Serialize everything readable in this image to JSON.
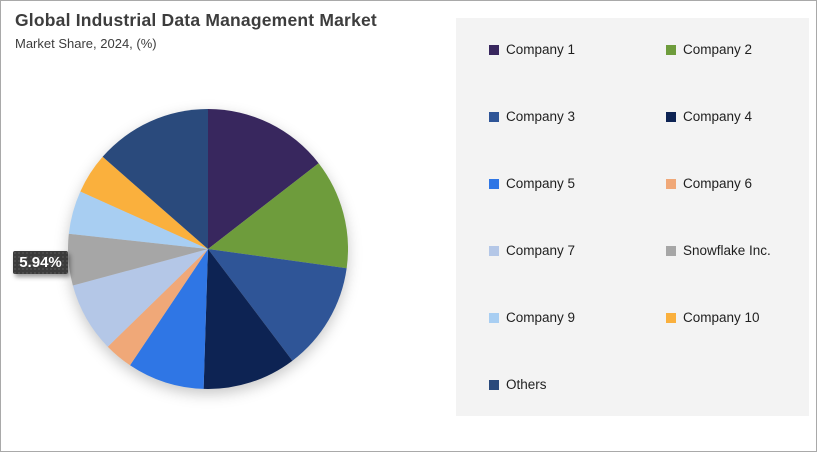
{
  "window": {
    "border_color": "#a9a9a9",
    "background": "#ffffff"
  },
  "header": {
    "title": "Global Industrial Data Management Market",
    "subtitle": "Market Share, 2024, (%)"
  },
  "chart_data": {
    "type": "pie",
    "title": "Global Industrial Data Management Market",
    "subtitle": "Market Share, 2024, (%)",
    "unit": "%",
    "start_angle_deg": 0,
    "clockwise": true,
    "legend_position": "right",
    "legend_background": "#f3f3f3",
    "slices": [
      {
        "label": "Company 1",
        "value": 14.5,
        "color": "#38275e"
      },
      {
        "label": "Company 2",
        "value": 12.7,
        "color": "#6e9c3c"
      },
      {
        "label": "Company 3",
        "value": 12.5,
        "color": "#2f5597"
      },
      {
        "label": "Company 4",
        "value": 10.8,
        "color": "#0d2353"
      },
      {
        "label": "Company 5",
        "value": 8.9,
        "color": "#2f76e5"
      },
      {
        "label": "Company 6",
        "value": 3.3,
        "color": "#f0a878"
      },
      {
        "label": "Company 7",
        "value": 8.1,
        "color": "#b4c7e7"
      },
      {
        "label": "Snowflake Inc.",
        "value": 5.94,
        "color": "#a6a6a6"
      },
      {
        "label": "Company 9",
        "value": 5.0,
        "color": "#a8cef2"
      },
      {
        "label": "Company 10",
        "value": 4.7,
        "color": "#fab03d"
      },
      {
        "label": "Others",
        "value": 13.56,
        "color": "#2a4a7c"
      }
    ],
    "callout": {
      "target": "Snowflake Inc.",
      "text": "5.94%",
      "background": "#3b3b3b",
      "text_color": "#ffffff"
    }
  }
}
